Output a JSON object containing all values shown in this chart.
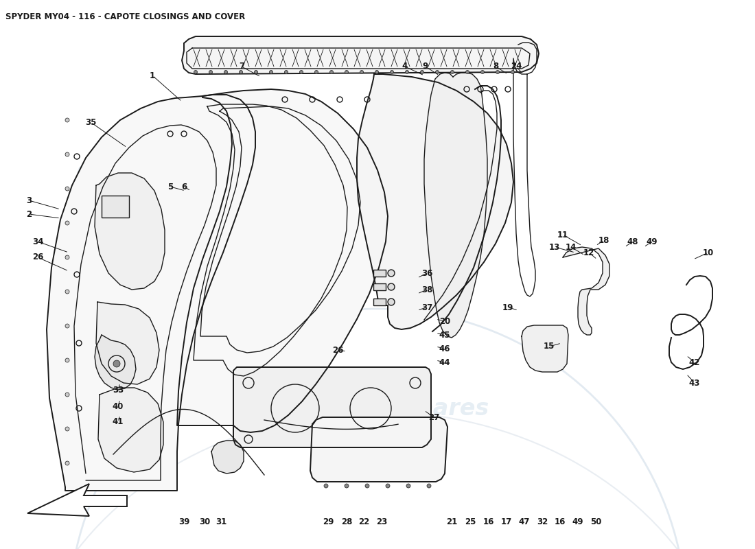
{
  "title": "SPYDER MY04 - 116 - CAPOTE CLOSINGS AND COVER",
  "title_fontsize": 8.5,
  "bg_color": "#ffffff",
  "line_color": "#1a1a1a",
  "watermark_color": "#b8cfe0",
  "watermark_alpha": 0.35,
  "label_fontsize": 8.5,
  "labels_bottom": [
    [
      "39",
      268,
      760
    ],
    [
      "30",
      298,
      760
    ],
    [
      "31",
      322,
      760
    ],
    [
      "29",
      478,
      760
    ],
    [
      "28",
      505,
      760
    ],
    [
      "22",
      530,
      760
    ],
    [
      "23",
      556,
      760
    ],
    [
      "21",
      658,
      760
    ],
    [
      "25",
      685,
      760
    ],
    [
      "16",
      712,
      760
    ],
    [
      "17",
      738,
      760
    ],
    [
      "47",
      764,
      760
    ],
    [
      "32",
      790,
      760
    ],
    [
      "16",
      816,
      760
    ],
    [
      "49",
      842,
      760
    ],
    [
      "50",
      868,
      760
    ]
  ],
  "labels_left": [
    [
      "1",
      222,
      110
    ],
    [
      "35",
      130,
      178
    ],
    [
      "3",
      42,
      292
    ],
    [
      "2",
      42,
      312
    ],
    [
      "34",
      55,
      352
    ],
    [
      "26",
      55,
      375
    ]
  ],
  "labels_center_left": [
    [
      "5",
      248,
      272
    ],
    [
      "6",
      268,
      272
    ],
    [
      "7",
      350,
      98
    ],
    [
      "36",
      622,
      398
    ],
    [
      "38",
      622,
      422
    ],
    [
      "37",
      622,
      448
    ],
    [
      "20",
      648,
      468
    ],
    [
      "45",
      648,
      488
    ],
    [
      "46",
      648,
      508
    ],
    [
      "44",
      648,
      528
    ],
    [
      "26",
      492,
      510
    ],
    [
      "27",
      632,
      608
    ],
    [
      "33",
      172,
      568
    ],
    [
      "40",
      172,
      592
    ],
    [
      "41",
      172,
      614
    ]
  ],
  "labels_right": [
    [
      "4",
      588,
      98
    ],
    [
      "9",
      618,
      98
    ],
    [
      "8",
      720,
      98
    ],
    [
      "24",
      750,
      98
    ],
    [
      "11",
      818,
      342
    ],
    [
      "13",
      808,
      360
    ],
    [
      "14",
      832,
      360
    ],
    [
      "12",
      858,
      368
    ],
    [
      "18",
      878,
      352
    ],
    [
      "48",
      920,
      352
    ],
    [
      "49",
      948,
      352
    ],
    [
      "10",
      1030,
      368
    ],
    [
      "19",
      738,
      448
    ],
    [
      "15",
      798,
      505
    ],
    [
      "42",
      1010,
      528
    ],
    [
      "43",
      1010,
      558
    ]
  ]
}
